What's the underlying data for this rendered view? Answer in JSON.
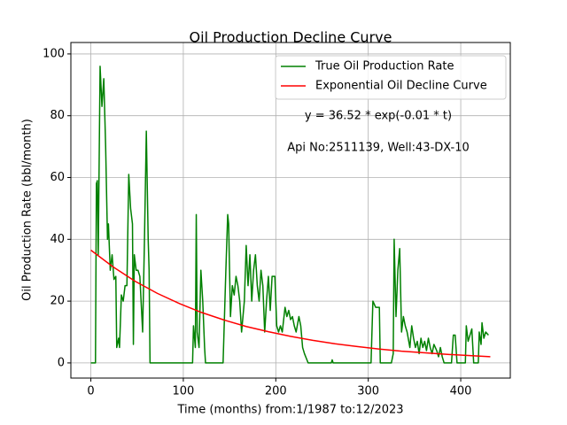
{
  "chart_data": {
    "type": "line",
    "title": "Oil Production Decline Curve",
    "xlabel": "Time (months) from:1/1987 to:12/2023",
    "ylabel": "Oil Production Rate (bbl/month)",
    "annotations": [
      "y = 36.52 * exp(-0.01 * t)",
      "Api No:2511139, Well:43-DX-10"
    ],
    "xlim": [
      -21.6,
      453.6
    ],
    "ylim": [
      -4.9,
      103.7
    ],
    "xticks": [
      0,
      100,
      200,
      300,
      400
    ],
    "yticks": [
      0,
      20,
      40,
      60,
      80,
      100
    ],
    "grid": true,
    "legend": "upper right",
    "series": [
      {
        "name": "True Oil Production Rate",
        "color": "#008000",
        "x": [
          0,
          5,
          6,
          7,
          8,
          10,
          12,
          14,
          16,
          18,
          19,
          21,
          23,
          25,
          27,
          28,
          30,
          31,
          33,
          35,
          37,
          39,
          41,
          43,
          45,
          46,
          47,
          49,
          51,
          53,
          56,
          58,
          60,
          62,
          63,
          64,
          110,
          111,
          113,
          114,
          115,
          117,
          119,
          121,
          123,
          124,
          140,
          143,
          144,
          146,
          148,
          149,
          151,
          153,
          155,
          157,
          159,
          161,
          163,
          166,
          168,
          170,
          172,
          174,
          176,
          178,
          180,
          182,
          184,
          186,
          188,
          190,
          192,
          194,
          196,
          199,
          201,
          203,
          205,
          207,
          210,
          212,
          214,
          216,
          218,
          220,
          222,
          225,
          227,
          229,
          231,
          235,
          260,
          261,
          262,
          300,
          303,
          305,
          308,
          312,
          313,
          325,
          327,
          328,
          330,
          332,
          334,
          336,
          338,
          340,
          342,
          345,
          347,
          349,
          351,
          353,
          355,
          357,
          359,
          361,
          363,
          365,
          367,
          369,
          371,
          374,
          376,
          378,
          380,
          382,
          390,
          392,
          394,
          396,
          405,
          406,
          408,
          410,
          412,
          414,
          419,
          420,
          422,
          423,
          425,
          427,
          430
        ],
        "values": [
          0,
          0,
          58,
          59,
          35,
          96,
          83,
          92,
          70,
          40,
          45,
          30,
          35,
          27,
          28,
          5,
          8,
          5,
          22,
          20,
          25,
          25,
          61,
          50,
          45,
          6,
          35,
          30,
          30,
          28,
          10,
          40,
          75,
          40,
          30,
          0,
          0,
          12,
          5,
          48,
          10,
          5,
          30,
          20,
          5,
          0,
          0,
          0,
          10,
          30,
          48,
          45,
          15,
          25,
          22,
          28,
          25,
          20,
          10,
          20,
          38,
          25,
          35,
          20,
          30,
          35,
          25,
          20,
          30,
          25,
          10,
          20,
          28,
          17,
          28,
          28,
          12,
          10,
          12,
          10,
          18,
          15,
          17,
          14,
          15,
          12,
          10,
          15,
          12,
          5,
          3,
          0,
          0,
          1,
          0,
          0,
          0,
          20,
          18,
          18,
          0,
          0,
          3,
          40,
          15,
          30,
          37,
          10,
          15,
          12,
          10,
          5,
          12,
          8,
          5,
          7,
          3,
          8,
          5,
          7,
          4,
          8,
          5,
          3,
          6,
          4,
          2,
          5,
          2,
          0,
          0,
          9,
          9,
          0,
          0,
          12,
          7,
          9,
          11,
          0,
          0,
          10,
          6,
          13,
          8,
          10,
          9
        ]
      },
      {
        "name": "Exponential Oil Decline Curve",
        "color": "#ff0000",
        "x": [
          0,
          24,
          48,
          72,
          96,
          120,
          144,
          168,
          192,
          216,
          240,
          264,
          288,
          312,
          336,
          360,
          384,
          408,
          432
        ],
        "values": [
          36.5,
          31.1,
          26.4,
          22.5,
          19.2,
          16.3,
          13.9,
          11.8,
          10.1,
          8.6,
          7.3,
          6.2,
          5.3,
          4.5,
          3.8,
          3.3,
          2.8,
          2.4,
          2.0
        ]
      }
    ]
  }
}
